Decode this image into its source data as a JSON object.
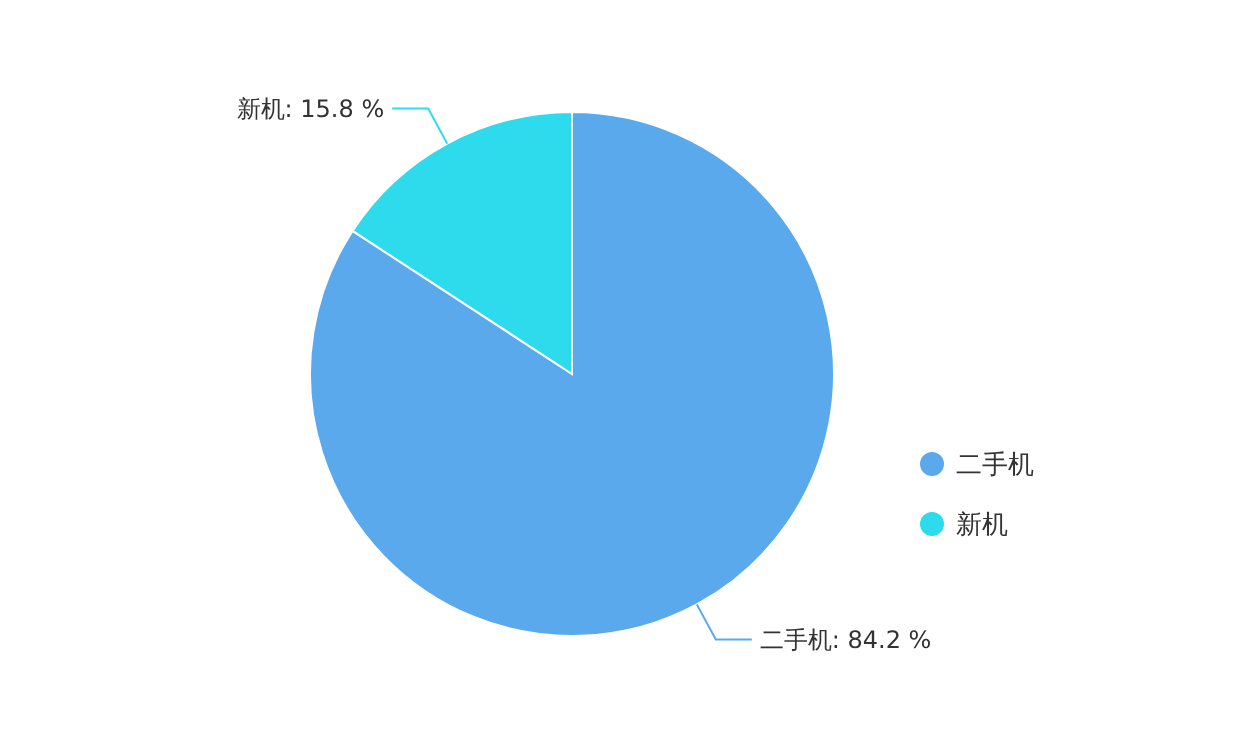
{
  "chart_data": {
    "type": "pie",
    "categories": [
      "二手机",
      "新机"
    ],
    "values": [
      84.2,
      15.8
    ],
    "value_labels": [
      "二手机: 84.2 %",
      "新机: 15.8 %"
    ],
    "colors": [
      "#5aa9ec",
      "#2ddbec"
    ],
    "legend": "right"
  }
}
